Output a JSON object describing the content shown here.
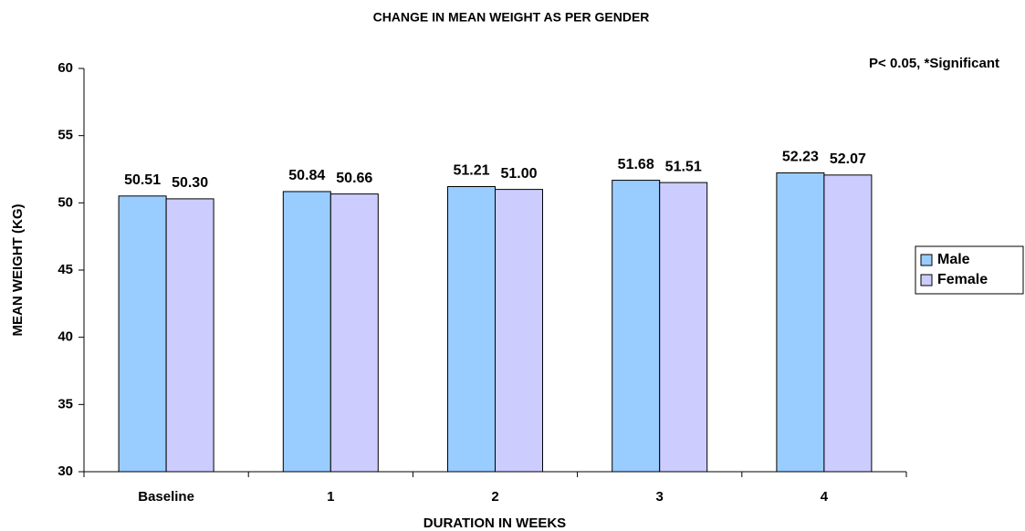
{
  "chart_data": {
    "type": "bar",
    "title": "CHANGE IN MEAN WEIGHT AS PER GENDER",
    "annotation": "P< 0.05, *Significant",
    "x_label": "DURATION IN WEEKS",
    "y_label": "MEAN WEIGHT (KG)",
    "categories": [
      "Baseline",
      "1",
      "2",
      "3",
      "4"
    ],
    "series": [
      {
        "name": "Male",
        "color": "#99ccff",
        "values": [
          50.51,
          50.84,
          51.21,
          51.68,
          52.23
        ],
        "value_labels": [
          "50.51",
          "50.84",
          "51.21",
          "51.68",
          "52.23"
        ]
      },
      {
        "name": "Female",
        "color": "#ccccff",
        "values": [
          50.3,
          50.66,
          51.0,
          51.51,
          52.07
        ],
        "value_labels": [
          "50.30",
          "50.66",
          "51.00",
          "51.51",
          "52.07"
        ]
      }
    ],
    "ylim": [
      30,
      60
    ],
    "yticks": [
      30,
      35,
      40,
      45,
      50,
      55,
      60
    ],
    "legend": "right"
  }
}
